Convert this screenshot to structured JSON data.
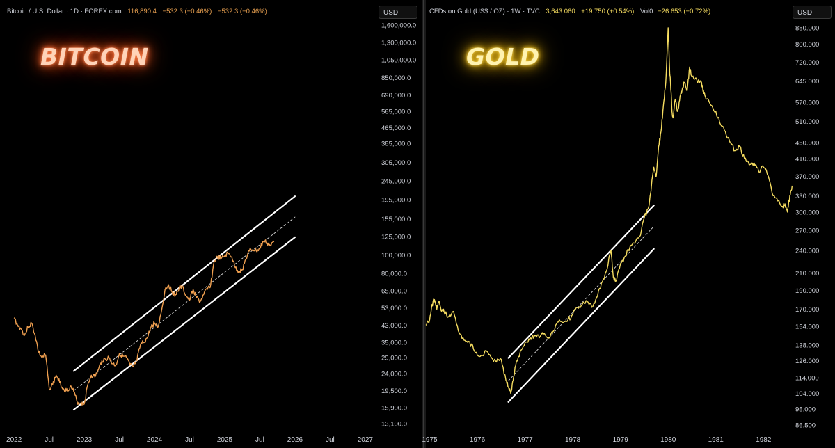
{
  "colors": {
    "btc": "#f0a050",
    "gold": "#f5dc60",
    "channel": "#ffffff"
  },
  "chart_data": [
    {
      "type": "line",
      "title": "BITCOIN",
      "header": {
        "symbol": "Bitcoin / U.S. Dollar · 1D · FOREX.com",
        "price": "116,890.4",
        "change": "−532.3 (−0.46%)",
        "change2": "−532.3 (−0.46%)"
      },
      "currency": "USD",
      "scale": "log",
      "yticks": [
        "1,600,000.0",
        "1,300,000.0",
        "1,050,000.0",
        "850,000.0",
        "690,000.0",
        "565,000.0",
        "465,000.0",
        "385,000.0",
        "305,000.0",
        "245,000.0",
        "195,000.0",
        "155,000.0",
        "125,000.0",
        "100,000.0",
        "80,000.0",
        "65,000.0",
        "53,000.0",
        "43,000.0",
        "35,000.0",
        "29,000.0",
        "24,000.0",
        "19,500.0",
        "15,900.0",
        "13,100.0"
      ],
      "xticks": [
        "2022",
        "Jul",
        "2023",
        "Jul",
        "2024",
        "Jul",
        "2025",
        "Jul",
        "2026",
        "Jul",
        "2027"
      ],
      "series": [
        {
          "x": [
            2022.0,
            2022.05,
            2022.1,
            2022.15,
            2022.2,
            2022.25,
            2022.3,
            2022.35,
            2022.4,
            2022.45,
            2022.5,
            2022.55,
            2022.6,
            2022.65,
            2022.7,
            2022.75,
            2022.8,
            2022.85,
            2022.9,
            2022.95,
            2023.0,
            2023.05,
            2023.1,
            2023.15,
            2023.2,
            2023.25,
            2023.3,
            2023.35,
            2023.4,
            2023.45,
            2023.5,
            2023.55,
            2023.6,
            2023.65,
            2023.7,
            2023.75,
            2023.8,
            2023.85,
            2023.9,
            2023.95,
            2024.0,
            2024.05,
            2024.1,
            2024.15,
            2024.2,
            2024.25,
            2024.3,
            2024.35,
            2024.4,
            2024.45,
            2024.5,
            2024.55,
            2024.6,
            2024.65,
            2024.7,
            2024.75,
            2024.8,
            2024.85,
            2024.9,
            2024.95,
            2025.0,
            2025.05,
            2025.1,
            2025.15,
            2025.2,
            2025.25,
            2025.3,
            2025.35,
            2025.4,
            2025.45,
            2025.5,
            2025.55,
            2025.6,
            2025.65,
            2025.7
          ],
          "y": [
            47000,
            43000,
            41000,
            38000,
            42000,
            44000,
            38000,
            31000,
            29000,
            30000,
            20000,
            21000,
            23500,
            21500,
            20000,
            19500,
            20500,
            19300,
            17000,
            16800,
            16600,
            21000,
            23500,
            23000,
            25000,
            28000,
            28500,
            29000,
            27000,
            26500,
            30500,
            29500,
            29000,
            26500,
            26000,
            28000,
            34000,
            35000,
            37000,
            42000,
            44000,
            42000,
            51000,
            66000,
            70000,
            64000,
            62000,
            67000,
            68000,
            61000,
            58000,
            66000,
            60000,
            57000,
            62000,
            66000,
            70000,
            93000,
            97000,
            96000,
            99000,
            102000,
            98000,
            86000,
            82000,
            84000,
            95000,
            105000,
            107000,
            105000,
            108000,
            118000,
            116000,
            112000,
            116900
          ]
        }
      ],
      "channel": {
        "upper": [
          [
            2022.85,
            24700
          ],
          [
            2026.0,
            203000
          ]
        ],
        "mid": [
          [
            2022.85,
            19500
          ],
          [
            2026.0,
            158000
          ]
        ],
        "lower": [
          [
            2022.85,
            15500
          ],
          [
            2026.0,
            124000
          ]
        ]
      }
    },
    {
      "type": "line",
      "title": "GOLD",
      "header": {
        "symbol": "CFDs on Gold (US$ / OZ) · 1W · TVC",
        "price": "3,643.060",
        "change": "+19.750 (+0.54%)",
        "vol_label": "Vol0",
        "vol_change": "−26.653 (−0.72%)"
      },
      "currency": "USD",
      "scale": "log",
      "yticks": [
        "880.000",
        "800.000",
        "720.000",
        "645.000",
        "570.000",
        "510.000",
        "450.000",
        "410.000",
        "370.000",
        "330.000",
        "300.000",
        "270.000",
        "240.000",
        "210.000",
        "190.000",
        "170.000",
        "154.000",
        "138.000",
        "126.000",
        "114.000",
        "104.000",
        "95.000",
        "86.500"
      ],
      "xticks": [
        "1975",
        "1976",
        "1977",
        "1978",
        "1979",
        "1980",
        "1981",
        "1982"
      ],
      "series": [
        {
          "x": [
            1974.92,
            1975.0,
            1975.05,
            1975.1,
            1975.15,
            1975.2,
            1975.25,
            1975.3,
            1975.4,
            1975.5,
            1975.6,
            1975.7,
            1975.8,
            1975.9,
            1976.0,
            1976.1,
            1976.2,
            1976.3,
            1976.4,
            1976.5,
            1976.6,
            1976.65,
            1976.7,
            1976.75,
            1976.8,
            1976.9,
            1977.0,
            1977.1,
            1977.2,
            1977.3,
            1977.4,
            1977.5,
            1977.6,
            1977.7,
            1977.8,
            1977.9,
            1978.0,
            1978.1,
            1978.2,
            1978.3,
            1978.4,
            1978.5,
            1978.6,
            1978.7,
            1978.8,
            1978.85,
            1978.9,
            1979.0,
            1979.1,
            1979.2,
            1979.3,
            1979.4,
            1979.5,
            1979.6,
            1979.7,
            1979.75,
            1979.8,
            1979.85,
            1979.9,
            1979.95,
            1980.0,
            1980.03,
            1980.05,
            1980.08,
            1980.1,
            1980.15,
            1980.2,
            1980.25,
            1980.3,
            1980.35,
            1980.4,
            1980.45,
            1980.5,
            1980.6,
            1980.7,
            1980.75,
            1980.8,
            1980.9,
            1981.0,
            1981.1,
            1981.2,
            1981.3,
            1981.4,
            1981.5,
            1981.6,
            1981.7,
            1981.8,
            1981.9,
            1982.0,
            1982.1,
            1982.2,
            1982.3,
            1982.4,
            1982.45,
            1982.5,
            1982.55,
            1982.6
          ],
          "y": [
            155,
            160,
            175,
            180,
            170,
            178,
            168,
            168,
            163,
            168,
            150,
            144,
            140,
            138,
            130,
            130,
            133,
            128,
            125,
            127,
            112,
            108,
            104,
            112,
            122,
            133,
            140,
            142,
            146,
            144,
            148,
            144,
            150,
            158,
            157,
            160,
            165,
            172,
            175,
            178,
            172,
            182,
            198,
            212,
            240,
            205,
            200,
            222,
            232,
            245,
            250,
            260,
            290,
            312,
            390,
            370,
            440,
            480,
            560,
            640,
            880,
            690,
            640,
            540,
            520,
            580,
            540,
            590,
            620,
            640,
            610,
            700,
            660,
            650,
            640,
            600,
            580,
            560,
            540,
            500,
            480,
            450,
            430,
            440,
            410,
            395,
            400,
            380,
            390,
            370,
            330,
            320,
            310,
            315,
            300,
            330,
            350
          ]
        }
      ],
      "channel": {
        "upper": [
          [
            1976.65,
            128
          ],
          [
            1979.7,
            312
          ]
        ],
        "mid": [
          [
            1976.65,
            112
          ],
          [
            1979.7,
            276
          ]
        ],
        "lower": [
          [
            1976.65,
            99
          ],
          [
            1979.7,
            242
          ]
        ]
      }
    }
  ]
}
